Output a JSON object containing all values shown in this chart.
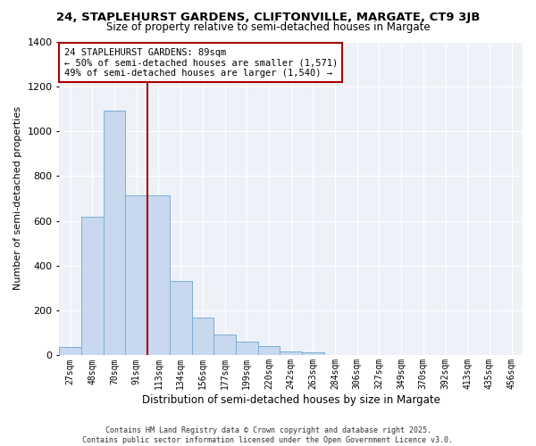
{
  "title": "24, STAPLEHURST GARDENS, CLIFTONVILLE, MARGATE, CT9 3JB",
  "subtitle": "Size of property relative to semi-detached houses in Margate",
  "xlabel": "Distribution of semi-detached houses by size in Margate",
  "ylabel": "Number of semi-detached properties",
  "bar_values": [
    38,
    620,
    1090,
    715,
    715,
    330,
    170,
    95,
    60,
    40,
    18,
    12,
    0,
    0,
    0,
    0,
    0,
    0,
    0,
    0,
    0
  ],
  "bin_labels": [
    "27sqm",
    "48sqm",
    "70sqm",
    "91sqm",
    "113sqm",
    "134sqm",
    "156sqm",
    "177sqm",
    "199sqm",
    "220sqm",
    "242sqm",
    "263sqm",
    "284sqm",
    "306sqm",
    "327sqm",
    "349sqm",
    "370sqm",
    "392sqm",
    "413sqm",
    "435sqm",
    "456sqm"
  ],
  "bar_color": "#c8d8ee",
  "bar_edge_color": "#7aaed6",
  "plot_bg_color": "#eef2f8",
  "grid_color": "#ffffff",
  "vline_x": 3,
  "vline_color": "#aa0000",
  "annotation_box_color": "#aa0000",
  "annotation_lines": [
    "24 STAPLEHURST GARDENS: 89sqm",
    "← 50% of semi-detached houses are smaller (1,571)",
    "49% of semi-detached houses are larger (1,540) →"
  ],
  "ylim": [
    0,
    1400
  ],
  "yticks": [
    0,
    200,
    400,
    600,
    800,
    1000,
    1200,
    1400
  ],
  "footer_line1": "Contains HM Land Registry data © Crown copyright and database right 2025.",
  "footer_line2": "Contains public sector information licensed under the Open Government Licence v3.0."
}
